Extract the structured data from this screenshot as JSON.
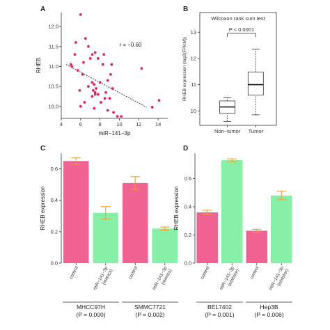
{
  "chart_data": [
    {
      "panel": "A",
      "type": "scatter",
      "xlabel": "miR−141−3p",
      "ylabel": "RHEB",
      "xlim": [
        4,
        15
      ],
      "ylim": [
        9.7,
        12.35
      ],
      "xticks": [
        "4",
        "6",
        "8",
        "10",
        "12",
        "14"
      ],
      "yticks": [
        "10.0",
        "10.5",
        "11.0",
        "11.5",
        "12.0"
      ],
      "annotation": "r = −0.60",
      "point_color": "#e0245e",
      "trendline": {
        "style": "dashed",
        "x": [
          4.5,
          12.8
        ],
        "y": [
          11.05,
          9.98
        ]
      },
      "points": [
        [
          5.1,
          11.0
        ],
        [
          5.4,
          11.3
        ],
        [
          5.0,
          11.05
        ],
        [
          6.0,
          12.3
        ],
        [
          6.5,
          11.7
        ],
        [
          5.5,
          11.6
        ],
        [
          6.8,
          11.5
        ],
        [
          7.2,
          11.3
        ],
        [
          7.5,
          11.35
        ],
        [
          7.0,
          11.2
        ],
        [
          6.3,
          11.1
        ],
        [
          7.8,
          11.2
        ],
        [
          8.4,
          11.3
        ],
        [
          8.3,
          11.05
        ],
        [
          9.2,
          11.05
        ],
        [
          9.1,
          10.8
        ],
        [
          8.8,
          10.65
        ],
        [
          8.0,
          10.6
        ],
        [
          7.2,
          10.6
        ],
        [
          6.8,
          10.5
        ],
        [
          7.4,
          10.55
        ],
        [
          7.6,
          10.45
        ],
        [
          6.2,
          10.8
        ],
        [
          5.7,
          10.9
        ],
        [
          5.9,
          10.4
        ],
        [
          7.3,
          10.4
        ],
        [
          7.5,
          10.35
        ],
        [
          7.8,
          10.3
        ],
        [
          8.6,
          10.35
        ],
        [
          9.3,
          10.45
        ],
        [
          9.0,
          10.2
        ],
        [
          8.5,
          10.2
        ],
        [
          8.1,
          10.1
        ],
        [
          7.4,
          9.95
        ],
        [
          6.4,
          10.1
        ],
        [
          6.0,
          10.0
        ],
        [
          7.2,
          10.25
        ],
        [
          8.8,
          9.9
        ],
        [
          9.4,
          9.85
        ],
        [
          9.8,
          9.75
        ],
        [
          10.2,
          9.75
        ],
        [
          12.3,
          10.95
        ],
        [
          14.1,
          10.15
        ],
        [
          13.4,
          9.98
        ],
        [
          7.5,
          10.3
        ]
      ]
    },
    {
      "panel": "B",
      "type": "box",
      "title": "Wilcoxon rank sum test",
      "ylabel": "RHEB expression (log2(FPKM))",
      "ylim": [
        9.45,
        13.75
      ],
      "yticks": [
        "10",
        "11",
        "12",
        "13"
      ],
      "categories": [
        "Non−tumor",
        "Tumor"
      ],
      "boxes": [
        {
          "name": "Non−tumor",
          "whisker_low": 9.6,
          "q1": 9.9,
          "median": 10.15,
          "q3": 10.38,
          "whisker_high": 10.5
        },
        {
          "name": "Tumor",
          "whisker_low": 9.85,
          "q1": 10.6,
          "median": 11.0,
          "q3": 11.48,
          "whisker_high": 12.35
        }
      ],
      "annotation": "P < 0.0001"
    },
    {
      "panel": "C",
      "type": "bar",
      "ylabel": "RHEB expression",
      "ylim": [
        0,
        0.7
      ],
      "yticks": [
        "0.0",
        "0.2",
        "0.4",
        "0.6"
      ],
      "categories": [
        "control",
        "miR−141−3p\n(mimics)",
        "control",
        "miR−141−3p\n(mimics)"
      ],
      "colors": [
        "#f06292",
        "#86efa8",
        "#f06292",
        "#86efa8"
      ],
      "error_color": "#f0a030",
      "values": [
        0.65,
        0.32,
        0.51,
        0.22
      ],
      "errors": [
        0.02,
        0.04,
        0.04,
        0.01
      ],
      "groups": [
        {
          "name": "MHCC97H",
          "pvalue": "(P = 0.000)"
        },
        {
          "name": "SMMC7721",
          "pvalue": "(P = 0.002)"
        }
      ]
    },
    {
      "panel": "D",
      "type": "bar",
      "ylabel": "RHEB expression",
      "ylim": [
        0,
        0.78
      ],
      "yticks": [
        "0.0",
        "0.2",
        "0.4",
        "0.6"
      ],
      "categories": [
        "control",
        "miR−141−3p\n(inhibitor)",
        "control",
        "miR−141−3p\n(inhibitor)"
      ],
      "colors": [
        "#f06292",
        "#86efa8",
        "#f06292",
        "#86efa8"
      ],
      "error_color": "#f0a030",
      "values": [
        0.36,
        0.73,
        0.23,
        0.48
      ],
      "errors": [
        0.015,
        0.01,
        0.01,
        0.03
      ],
      "groups": [
        {
          "name": "BEL7402",
          "pvalue": "(P = 0.001)"
        },
        {
          "name": "Hep3B",
          "pvalue": "(P = 0.006)"
        }
      ]
    }
  ]
}
